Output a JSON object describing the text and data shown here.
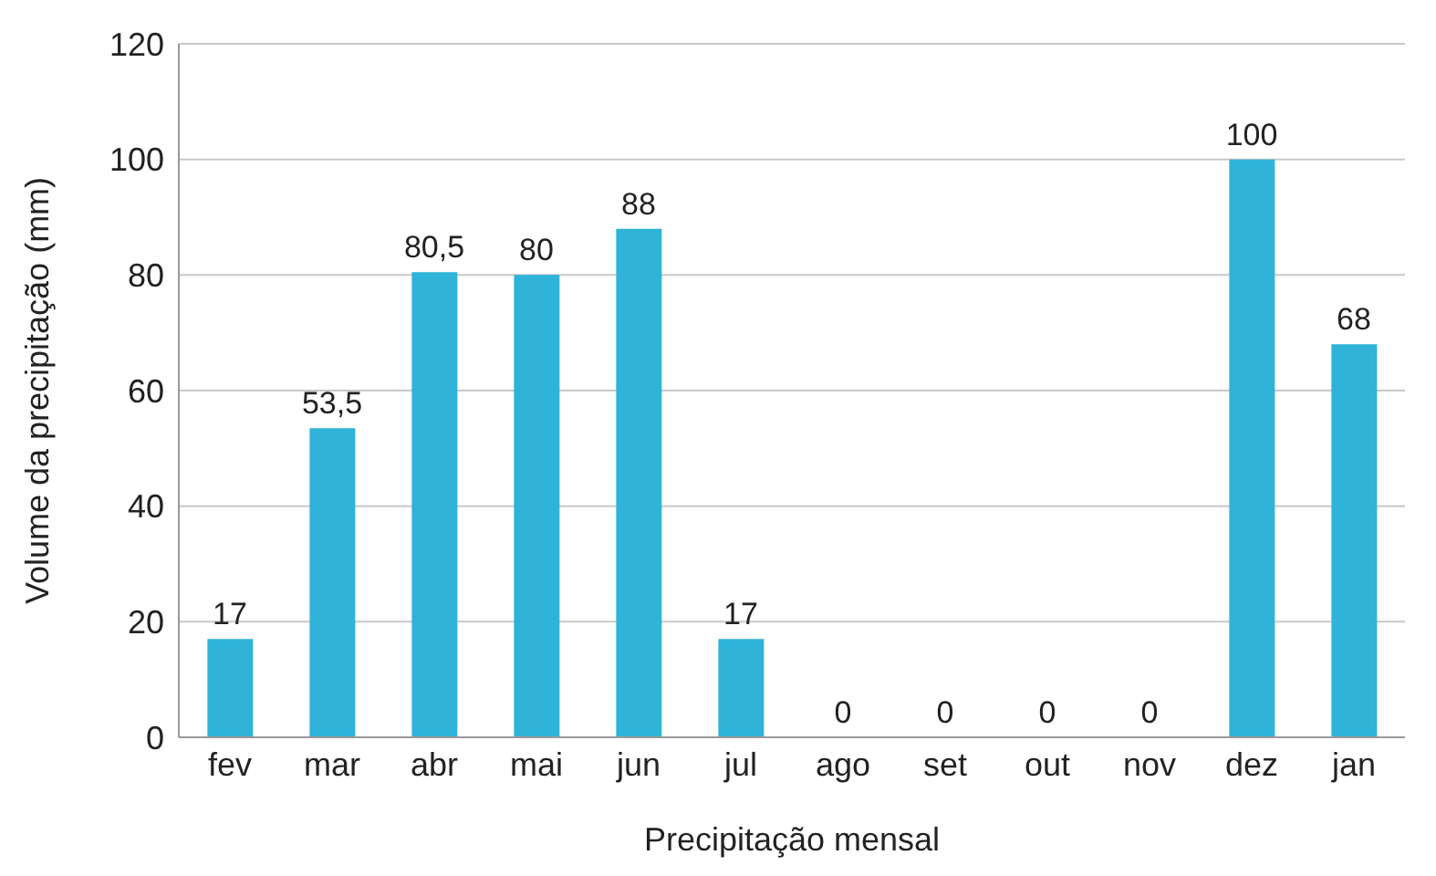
{
  "chart_data": {
    "type": "bar",
    "xlabel": "Precipitação mensal",
    "ylabel": "Volume da precipitação (mm)",
    "categories": [
      "fev",
      "mar",
      "abr",
      "mai",
      "jun",
      "jul",
      "ago",
      "set",
      "out",
      "nov",
      "dez",
      "jan"
    ],
    "values": [
      17,
      53.5,
      80.5,
      80,
      88,
      17,
      0,
      0,
      0,
      0,
      100,
      68
    ],
    "value_labels": [
      "17",
      "53,5",
      "80,5",
      "80",
      "88",
      "17",
      "0",
      "0",
      "0",
      "0",
      "100",
      "68"
    ],
    "color": "#2fb3d9",
    "ylim": [
      0,
      120
    ],
    "yticks": [
      0,
      20,
      40,
      60,
      80,
      100,
      120
    ],
    "grid": "y"
  }
}
